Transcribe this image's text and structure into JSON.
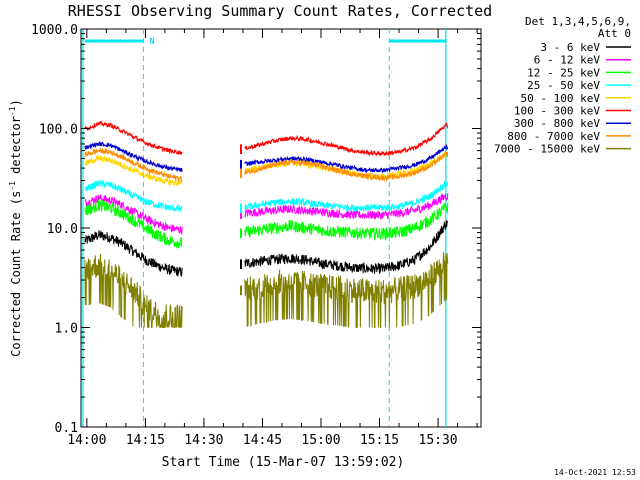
{
  "chart_data": {
    "type": "line",
    "title": "RHESSI Observing Summary Count Rates, Corrected",
    "xlabel": "Start Time (15-Mar-07 13:59:02)",
    "ylabel_main": "Corrected Count Rate (s",
    "ylabel_sup1": "-1",
    "ylabel_mid": " detector",
    "ylabel_sup2": "-1",
    "ylabel_end": ")",
    "yscale": "log",
    "ylim": [
      0.1,
      1000
    ],
    "xlim_minutes": [
      -1.5,
      101
    ],
    "xlim": [
      "13:58:30",
      "15:41"
    ],
    "x_ticks": [
      {
        "label": "14:00",
        "min": 0
      },
      {
        "label": "14:15",
        "min": 15
      },
      {
        "label": "14:30",
        "min": 30
      },
      {
        "label": "14:45",
        "min": 45
      },
      {
        "label": "15:00",
        "min": 60
      },
      {
        "label": "15:15",
        "min": 75
      },
      {
        "label": "15:30",
        "min": 90
      }
    ],
    "y_ticks": [
      {
        "label": "0.1",
        "v": 0.1
      },
      {
        "label": "1.0",
        "v": 1
      },
      {
        "label": "10.0",
        "v": 10
      },
      {
        "label": "100.0",
        "v": 100
      },
      {
        "label": "1000.0",
        "v": 1000
      }
    ],
    "legend_header": [
      "Det 1,3,4,5,6,9,",
      "Att 0"
    ],
    "legend_position": "right",
    "grid": false,
    "night_markers_min": [
      -1,
      92
    ],
    "saa_markers_min": [
      14.5,
      77.5,
      92
    ],
    "saa_bar": [
      {
        "from": -0.5,
        "to": 14.5
      },
      {
        "from": 77.5,
        "to": 92
      }
    ],
    "annotation_N": {
      "text": "N",
      "at_min": 16
    },
    "gap": {
      "from": 24.5,
      "to": 39.5
    },
    "series": [
      {
        "name": "3 - 6 keV",
        "color": "#000000",
        "x": [
          0,
          3,
          6,
          9,
          12,
          15,
          18,
          21,
          24.5,
          40.5,
          44,
          48,
          52,
          56,
          60,
          64,
          68,
          72,
          76,
          80,
          84,
          88,
          92
        ],
        "y": [
          7.5,
          8.5,
          8,
          7,
          5.8,
          4.8,
          4.2,
          3.8,
          3.6,
          4.4,
          4.6,
          4.8,
          5.0,
          4.8,
          4.4,
          4.2,
          4.0,
          3.9,
          3.9,
          4.2,
          4.8,
          6.5,
          11
        ]
      },
      {
        "name": "6 - 12 keV",
        "color": "#ff00ff",
        "x": [
          0,
          3,
          6,
          9,
          12,
          15,
          18,
          21,
          24.5,
          40.5,
          44,
          48,
          52,
          56,
          60,
          64,
          68,
          72,
          76,
          80,
          84,
          88,
          92
        ],
        "y": [
          18,
          20,
          19,
          17,
          14.5,
          12.5,
          11,
          10,
          9.5,
          14,
          14.5,
          15,
          15.5,
          15,
          14.5,
          14,
          13.5,
          13.5,
          13.5,
          14,
          15,
          17,
          21
        ]
      },
      {
        "name": "12 - 25 keV",
        "color": "#00ff00",
        "x": [
          0,
          3,
          6,
          9,
          12,
          15,
          18,
          21,
          24.5,
          40.5,
          44,
          48,
          52,
          56,
          60,
          64,
          68,
          72,
          76,
          80,
          84,
          88,
          92
        ],
        "y": [
          15,
          17,
          16,
          14,
          12,
          10,
          8.5,
          7.5,
          7,
          9,
          9.5,
          10,
          10.5,
          10,
          9.5,
          9.2,
          9,
          8.8,
          8.8,
          9,
          10,
          12,
          16
        ]
      },
      {
        "name": "25 - 50 keV",
        "color": "#00ffff",
        "x": [
          0,
          3,
          6,
          9,
          12,
          15,
          18,
          21,
          24.5,
          40.5,
          44,
          48,
          52,
          56,
          60,
          64,
          68,
          72,
          76,
          80,
          84,
          88,
          92
        ],
        "y": [
          25,
          28,
          27,
          24,
          21,
          18.5,
          17,
          16,
          15.5,
          16,
          17,
          18,
          18.5,
          18,
          17,
          16.5,
          16,
          16,
          16,
          16.5,
          18,
          21,
          28
        ]
      },
      {
        "name": "50 - 100 keV",
        "color": "#ffd700",
        "x": [
          0,
          3,
          6,
          9,
          12,
          15,
          18,
          21,
          24.5,
          40.5,
          44,
          48,
          52,
          56,
          60,
          64,
          68,
          72,
          76,
          80,
          84,
          88,
          92
        ],
        "y": [
          45,
          50,
          48,
          43,
          38,
          34,
          31,
          29,
          28,
          38,
          40,
          43,
          45,
          44,
          41,
          38,
          35,
          33,
          33,
          35,
          38,
          45,
          55
        ]
      },
      {
        "name": "100 - 300 keV",
        "color": "#ff0000",
        "x": [
          0,
          3,
          6,
          9,
          12,
          15,
          18,
          21,
          24.5,
          40.5,
          44,
          48,
          52,
          56,
          60,
          64,
          68,
          72,
          76,
          80,
          84,
          88,
          92
        ],
        "y": [
          100,
          112,
          108,
          95,
          82,
          72,
          65,
          60,
          57,
          63,
          68,
          75,
          80,
          78,
          72,
          66,
          60,
          57,
          56,
          58,
          64,
          78,
          108
        ]
      },
      {
        "name": "300 - 800 keV",
        "color": "#0000cd",
        "x": [
          0,
          3,
          6,
          9,
          12,
          15,
          18,
          21,
          24.5,
          40.5,
          44,
          48,
          52,
          56,
          60,
          64,
          68,
          72,
          76,
          80,
          84,
          88,
          92
        ],
        "y": [
          65,
          70,
          68,
          60,
          53,
          47,
          43,
          40,
          38,
          44,
          46,
          48,
          50,
          49,
          46,
          43,
          40,
          38,
          38,
          40,
          43,
          50,
          65
        ]
      },
      {
        "name": "800 - 7000 keV",
        "color": "#ff8c00",
        "x": [
          0,
          3,
          6,
          9,
          12,
          15,
          18,
          21,
          24.5,
          40.5,
          44,
          48,
          52,
          56,
          60,
          64,
          68,
          72,
          76,
          80,
          84,
          88,
          92
        ],
        "y": [
          55,
          60,
          58,
          52,
          45,
          40,
          36,
          33,
          31,
          36,
          39,
          43,
          46,
          45,
          42,
          38,
          35,
          33,
          32,
          33,
          36,
          42,
          55
        ]
      },
      {
        "name": "7000 - 15000 keV",
        "color": "#808000",
        "x": [
          0,
          3,
          6,
          9,
          12,
          15,
          18,
          21,
          24.5,
          40.5,
          44,
          48,
          52,
          56,
          60,
          64,
          68,
          72,
          76,
          80,
          84,
          88,
          92
        ],
        "y": [
          4,
          4.2,
          3.8,
          3,
          2.4,
          1.6,
          1.4,
          1.3,
          1.3,
          2.4,
          2.6,
          2.8,
          2.9,
          2.8,
          2.6,
          2.5,
          2.4,
          2.3,
          2.3,
          2.4,
          2.6,
          3.2,
          4.5
        ]
      }
    ]
  },
  "timestamp": "14-Oct-2021 12:53"
}
